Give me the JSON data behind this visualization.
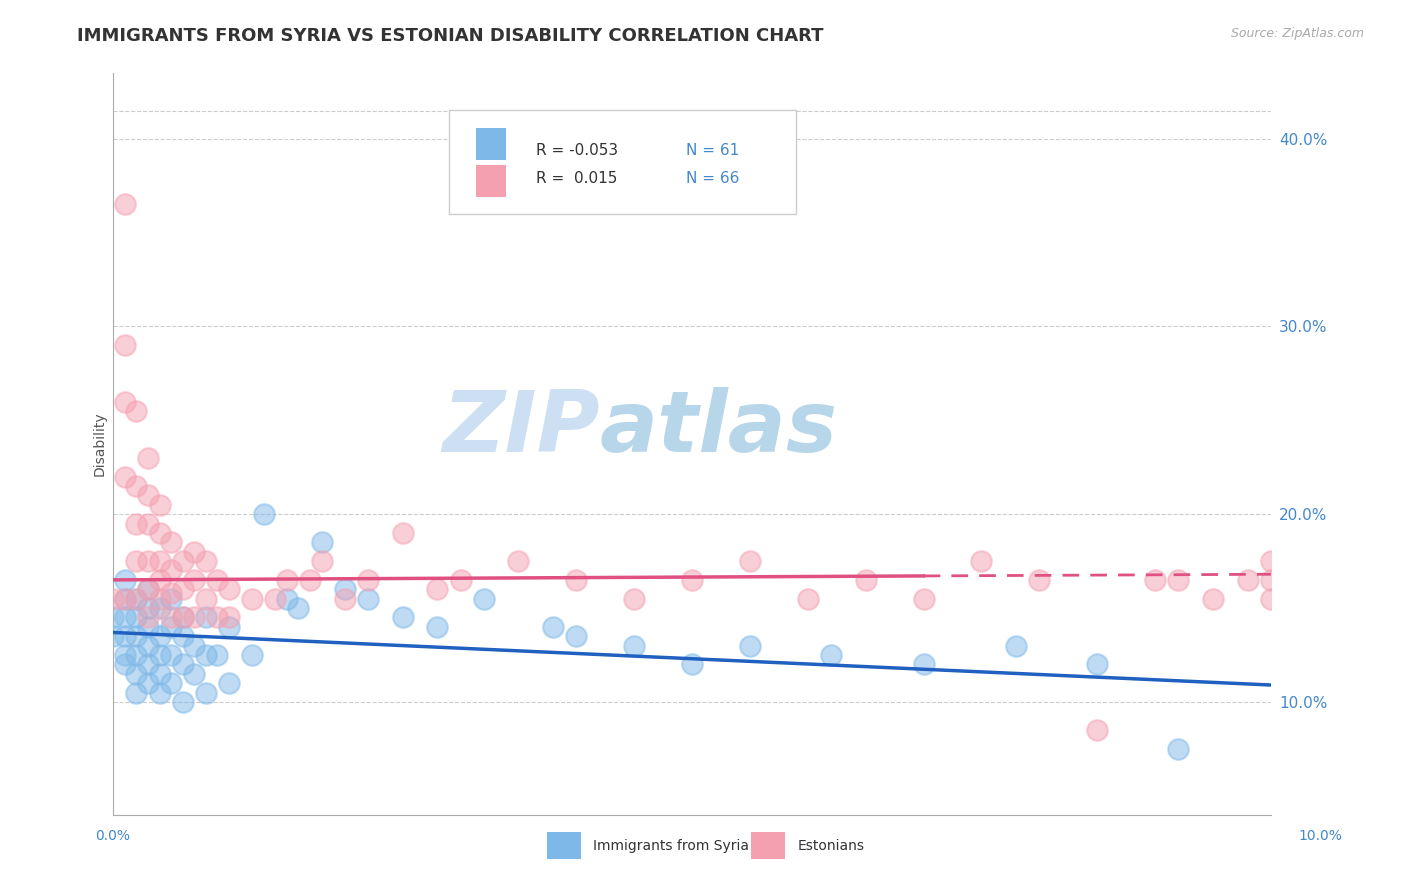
{
  "title": "IMMIGRANTS FROM SYRIA VS ESTONIAN DISABILITY CORRELATION CHART",
  "source": "Source: ZipAtlas.com",
  "ylabel": "Disability",
  "xmin": 0.0,
  "xmax": 0.1,
  "ymin": 0.04,
  "ymax": 0.435,
  "right_yticks": [
    0.1,
    0.2,
    0.3,
    0.4
  ],
  "right_yticklabels": [
    "10.0%",
    "20.0%",
    "30.0%",
    "40.0%"
  ],
  "grid_color": "#cccccc",
  "blue_color": "#7eb8e8",
  "pink_color": "#f4a0b0",
  "blue_line_color": "#2060c0",
  "pink_line_color": "#e05080",
  "blue_R": -0.053,
  "blue_N": 61,
  "pink_R": 0.015,
  "pink_N": 66,
  "blue_intercept": 0.137,
  "blue_slope": -0.28,
  "pink_intercept": 0.165,
  "pink_slope": 0.03,
  "blue_scatter_x": [
    0.0,
    0.0,
    0.001,
    0.001,
    0.001,
    0.001,
    0.001,
    0.001,
    0.002,
    0.002,
    0.002,
    0.002,
    0.002,
    0.002,
    0.003,
    0.003,
    0.003,
    0.003,
    0.003,
    0.003,
    0.004,
    0.004,
    0.004,
    0.004,
    0.004,
    0.005,
    0.005,
    0.005,
    0.005,
    0.006,
    0.006,
    0.006,
    0.006,
    0.007,
    0.007,
    0.008,
    0.008,
    0.008,
    0.009,
    0.01,
    0.01,
    0.012,
    0.013,
    0.015,
    0.016,
    0.018,
    0.02,
    0.022,
    0.025,
    0.028,
    0.032,
    0.038,
    0.04,
    0.045,
    0.05,
    0.055,
    0.062,
    0.07,
    0.078,
    0.085,
    0.092
  ],
  "blue_scatter_y": [
    0.135,
    0.145,
    0.12,
    0.125,
    0.135,
    0.145,
    0.155,
    0.165,
    0.105,
    0.115,
    0.125,
    0.135,
    0.145,
    0.155,
    0.11,
    0.12,
    0.13,
    0.14,
    0.15,
    0.16,
    0.105,
    0.115,
    0.125,
    0.135,
    0.15,
    0.11,
    0.125,
    0.14,
    0.155,
    0.1,
    0.12,
    0.135,
    0.145,
    0.115,
    0.13,
    0.105,
    0.125,
    0.145,
    0.125,
    0.11,
    0.14,
    0.125,
    0.2,
    0.155,
    0.15,
    0.185,
    0.16,
    0.155,
    0.145,
    0.14,
    0.155,
    0.14,
    0.135,
    0.13,
    0.12,
    0.13,
    0.125,
    0.12,
    0.13,
    0.12,
    0.075
  ],
  "pink_scatter_x": [
    0.0,
    0.001,
    0.001,
    0.001,
    0.001,
    0.001,
    0.002,
    0.002,
    0.002,
    0.002,
    0.002,
    0.003,
    0.003,
    0.003,
    0.003,
    0.003,
    0.003,
    0.004,
    0.004,
    0.004,
    0.004,
    0.004,
    0.005,
    0.005,
    0.005,
    0.005,
    0.006,
    0.006,
    0.006,
    0.007,
    0.007,
    0.007,
    0.008,
    0.008,
    0.009,
    0.009,
    0.01,
    0.01,
    0.012,
    0.014,
    0.015,
    0.017,
    0.018,
    0.02,
    0.022,
    0.025,
    0.028,
    0.03,
    0.035,
    0.04,
    0.045,
    0.05,
    0.055,
    0.06,
    0.065,
    0.07,
    0.075,
    0.08,
    0.085,
    0.09,
    0.092,
    0.095,
    0.098,
    0.1,
    0.1,
    0.1
  ],
  "pink_scatter_y": [
    0.155,
    0.29,
    0.22,
    0.26,
    0.365,
    0.155,
    0.155,
    0.175,
    0.195,
    0.215,
    0.255,
    0.145,
    0.16,
    0.175,
    0.195,
    0.21,
    0.23,
    0.155,
    0.165,
    0.175,
    0.19,
    0.205,
    0.145,
    0.158,
    0.17,
    0.185,
    0.145,
    0.16,
    0.175,
    0.145,
    0.165,
    0.18,
    0.155,
    0.175,
    0.145,
    0.165,
    0.145,
    0.16,
    0.155,
    0.155,
    0.165,
    0.165,
    0.175,
    0.155,
    0.165,
    0.19,
    0.16,
    0.165,
    0.175,
    0.165,
    0.155,
    0.165,
    0.175,
    0.155,
    0.165,
    0.155,
    0.175,
    0.165,
    0.085,
    0.165,
    0.165,
    0.155,
    0.165,
    0.155,
    0.165,
    0.175
  ]
}
